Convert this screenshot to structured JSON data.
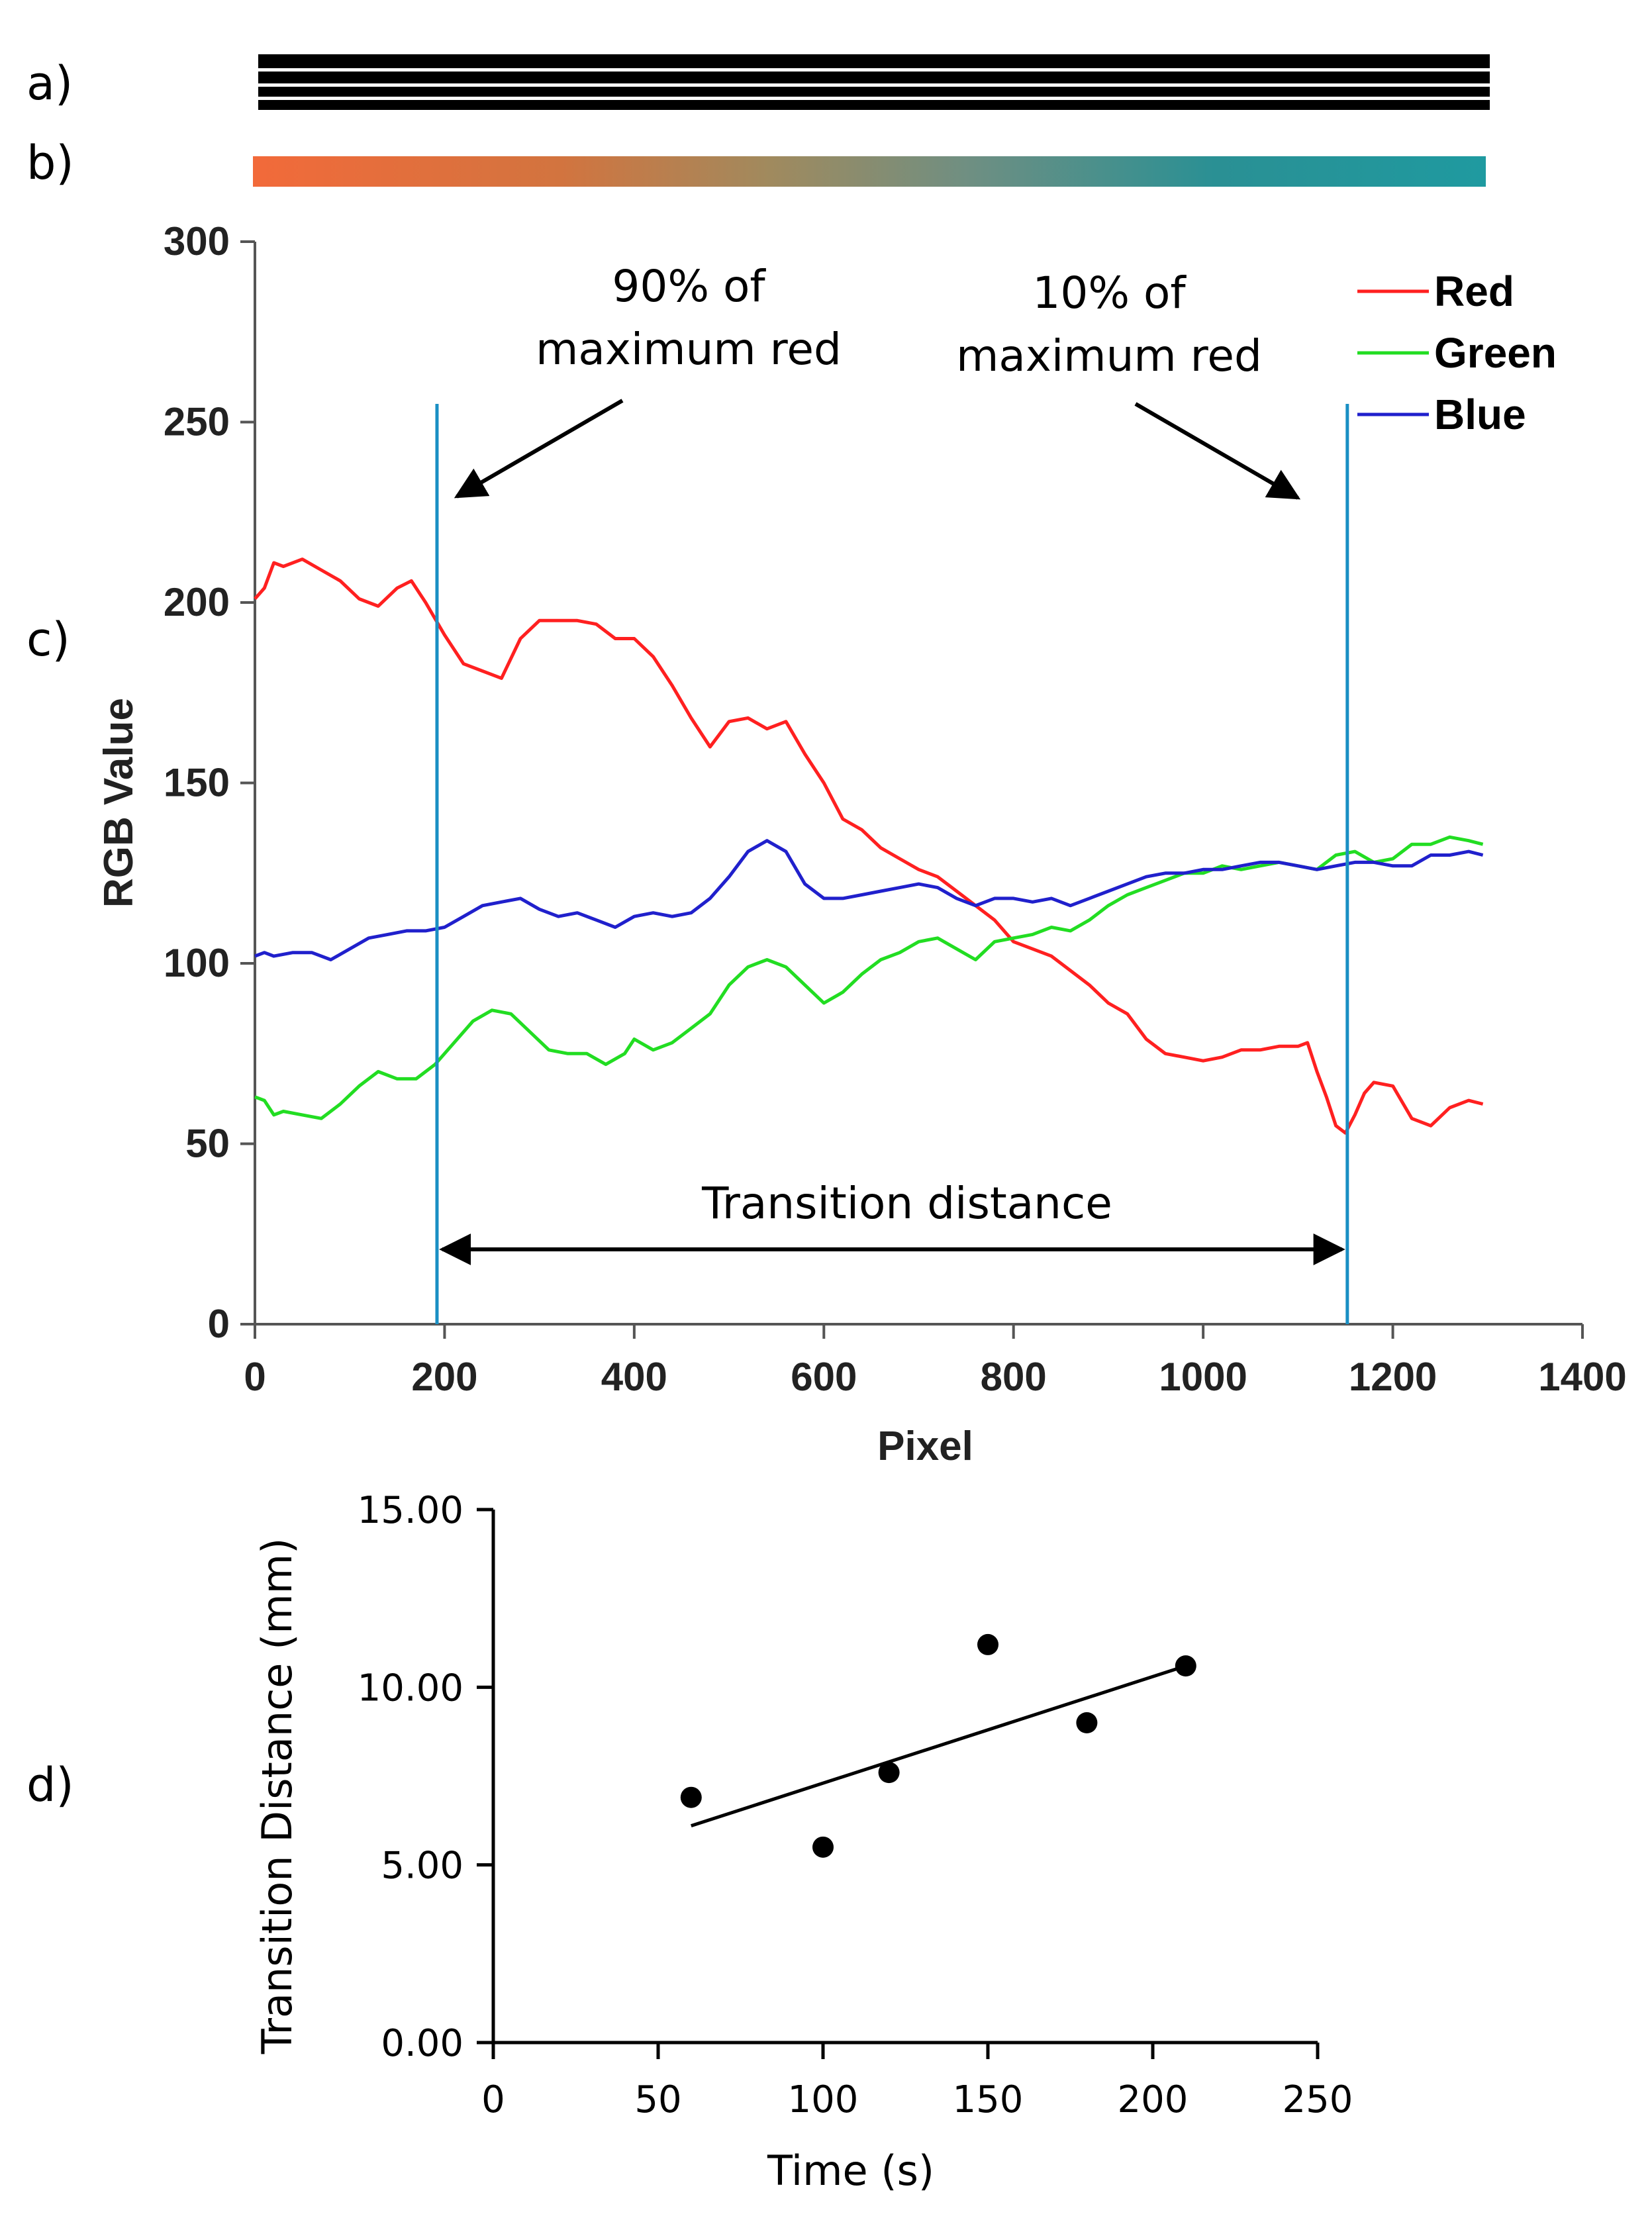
{
  "panel_labels": {
    "a": "a)",
    "b": "b)",
    "c": "c)",
    "d": "d)"
  },
  "chart_data": [
    {
      "id": "c",
      "type": "line",
      "title": "",
      "xlabel": "Pixel",
      "ylabel": "RGB Value",
      "xlim": [
        0,
        1400
      ],
      "ylim": [
        0,
        300
      ],
      "xticks": [
        "0",
        "200",
        "400",
        "600",
        "800",
        "1000",
        "1200",
        "1400"
      ],
      "yticks": [
        "0",
        "50",
        "100",
        "150",
        "200",
        "250",
        "300"
      ],
      "legend_position": "top-right",
      "grid": false,
      "series": [
        {
          "name": "Red",
          "color": "#ff2020",
          "x": [
            0,
            10,
            20,
            30,
            50,
            70,
            90,
            110,
            130,
            150,
            165,
            180,
            200,
            220,
            240,
            260,
            280,
            300,
            320,
            340,
            360,
            380,
            400,
            420,
            440,
            460,
            480,
            500,
            520,
            540,
            560,
            580,
            600,
            620,
            640,
            660,
            680,
            700,
            720,
            740,
            760,
            780,
            800,
            820,
            840,
            860,
            880,
            900,
            920,
            940,
            960,
            980,
            1000,
            1020,
            1040,
            1060,
            1080,
            1100,
            1110,
            1120,
            1130,
            1140,
            1150,
            1160,
            1170,
            1180,
            1200,
            1220,
            1240,
            1260,
            1280,
            1295
          ],
          "values": [
            201,
            204,
            211,
            210,
            212,
            209,
            206,
            201,
            199,
            204,
            206,
            200,
            191,
            183,
            181,
            179,
            190,
            195,
            195,
            195,
            194,
            190,
            190,
            185,
            177,
            168,
            160,
            167,
            168,
            165,
            167,
            158,
            150,
            140,
            137,
            132,
            129,
            126,
            124,
            120,
            116,
            112,
            106,
            104,
            102,
            98,
            94,
            89,
            86,
            79,
            75,
            74,
            73,
            74,
            76,
            76,
            77,
            77,
            78,
            70,
            63,
            55,
            53,
            58,
            64,
            67,
            66,
            57,
            55,
            60,
            62,
            61
          ]
        },
        {
          "name": "Green",
          "color": "#22dd22",
          "x": [
            0,
            10,
            20,
            30,
            50,
            70,
            90,
            110,
            130,
            150,
            170,
            190,
            210,
            230,
            250,
            270,
            290,
            310,
            330,
            350,
            370,
            390,
            400,
            420,
            440,
            460,
            480,
            500,
            520,
            540,
            560,
            580,
            600,
            620,
            640,
            660,
            680,
            700,
            720,
            740,
            760,
            780,
            800,
            820,
            840,
            860,
            880,
            900,
            920,
            940,
            960,
            980,
            1000,
            1020,
            1040,
            1060,
            1080,
            1100,
            1120,
            1140,
            1160,
            1180,
            1200,
            1220,
            1240,
            1260,
            1280,
            1295
          ],
          "values": [
            63,
            62,
            58,
            59,
            58,
            57,
            61,
            66,
            70,
            68,
            68,
            72,
            78,
            84,
            87,
            86,
            81,
            76,
            75,
            75,
            72,
            75,
            79,
            76,
            78,
            82,
            86,
            94,
            99,
            101,
            99,
            94,
            89,
            92,
            97,
            101,
            103,
            106,
            107,
            104,
            101,
            106,
            107,
            108,
            110,
            109,
            112,
            116,
            119,
            121,
            123,
            125,
            125,
            127,
            126,
            127,
            128,
            127,
            126,
            130,
            131,
            128,
            129,
            133,
            133,
            135,
            134,
            133
          ]
        },
        {
          "name": "Blue",
          "color": "#2020cc",
          "x": [
            0,
            10,
            20,
            40,
            60,
            80,
            100,
            120,
            140,
            160,
            180,
            200,
            220,
            240,
            260,
            280,
            300,
            320,
            340,
            360,
            380,
            400,
            420,
            440,
            460,
            480,
            500,
            520,
            540,
            560,
            580,
            600,
            620,
            640,
            660,
            680,
            700,
            720,
            740,
            760,
            780,
            800,
            820,
            840,
            860,
            880,
            900,
            920,
            940,
            960,
            980,
            1000,
            1020,
            1040,
            1060,
            1080,
            1100,
            1120,
            1140,
            1160,
            1180,
            1200,
            1220,
            1240,
            1260,
            1280,
            1295
          ],
          "values": [
            102,
            103,
            102,
            103,
            103,
            101,
            104,
            107,
            108,
            109,
            109,
            110,
            113,
            116,
            117,
            118,
            115,
            113,
            114,
            112,
            110,
            113,
            114,
            113,
            114,
            118,
            124,
            131,
            134,
            131,
            122,
            118,
            118,
            119,
            120,
            121,
            122,
            121,
            118,
            116,
            118,
            118,
            117,
            118,
            116,
            118,
            120,
            122,
            124,
            125,
            125,
            126,
            126,
            127,
            128,
            128,
            127,
            126,
            127,
            128,
            128,
            127,
            127,
            130,
            130,
            131,
            130
          ]
        }
      ],
      "vlines": [
        {
          "x": 192,
          "color": "#1a8fc4"
        },
        {
          "x": 1152,
          "color": "#1a8fc4"
        }
      ],
      "annotations": {
        "left": [
          "90% of",
          "maximum red"
        ],
        "right": [
          "10% of",
          "maximum red"
        ],
        "transition": "Transition distance"
      }
    },
    {
      "id": "d",
      "type": "scatter",
      "title": "",
      "xlabel": "Time (s)",
      "ylabel": "Transition Distance (mm)",
      "xlim": [
        0,
        250
      ],
      "ylim": [
        0,
        15
      ],
      "xticks": [
        "0",
        "50",
        "100",
        "150",
        "200",
        "250"
      ],
      "yticks": [
        "0.00",
        "5.00",
        "10.00",
        "15.00"
      ],
      "grid": false,
      "points": {
        "x": [
          60,
          100,
          120,
          150,
          180,
          210
        ],
        "y": [
          6.9,
          5.5,
          7.6,
          11.2,
          9.0,
          10.6
        ]
      },
      "trendline": {
        "x": [
          60,
          210
        ],
        "y": [
          6.1,
          10.6
        ]
      }
    }
  ]
}
